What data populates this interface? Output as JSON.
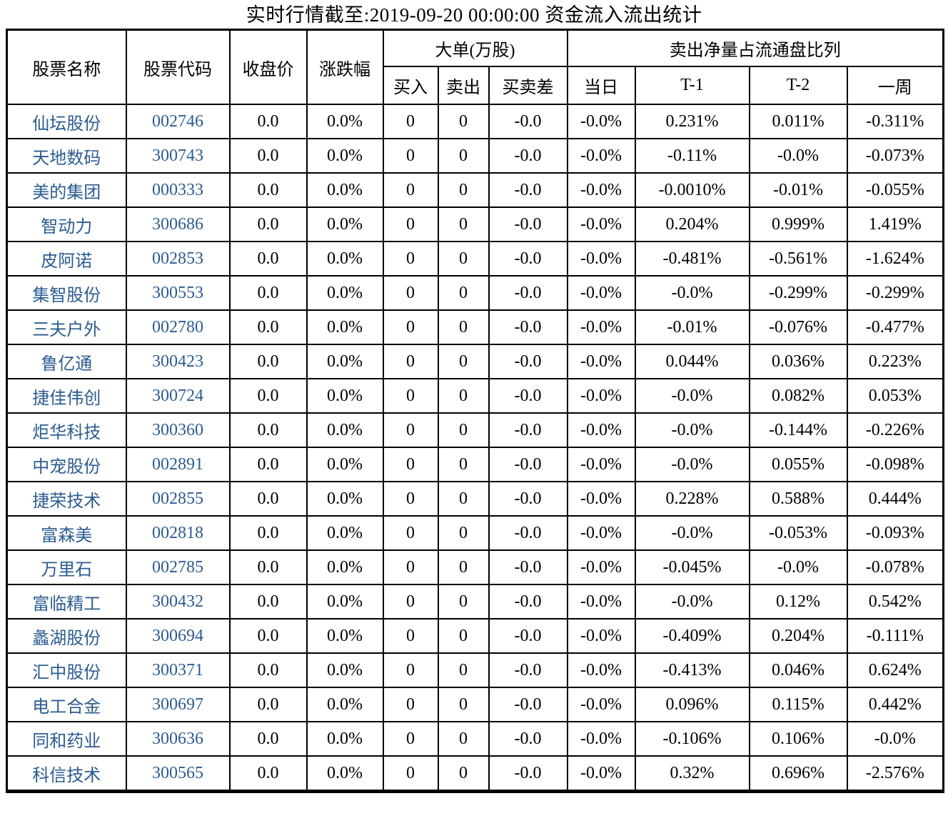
{
  "title": "实时行情截至:2019-09-20 00:00:00 资金流入流出统计",
  "colors": {
    "stock_link_blue": "#2b5c90",
    "border_black": "#000000",
    "background": "#ffffff"
  },
  "table": {
    "column_keys": [
      "name",
      "code",
      "close",
      "change",
      "buy",
      "sell",
      "diff",
      "today",
      "t1",
      "t2",
      "week"
    ],
    "headers": {
      "name": "股票名称",
      "code": "股票代码",
      "close": "收盘价",
      "change": "涨跌幅",
      "big_order_group": "大单(万股)",
      "buy": "买入",
      "sell": "卖出",
      "diff": "买卖差",
      "net_sell_ratio_group": "卖出净量占流通盘比列",
      "today": "当日",
      "t1": "T-1",
      "t2": "T-2",
      "week": "一周"
    },
    "rows": [
      {
        "name": "仙坛股份",
        "code": "002746",
        "close": "0.0",
        "change": "0.0%",
        "buy": "0",
        "sell": "0",
        "diff": "-0.0",
        "today": "-0.0%",
        "t1": "0.231%",
        "t2": "0.011%",
        "week": "-0.311%"
      },
      {
        "name": "天地数码",
        "code": "300743",
        "close": "0.0",
        "change": "0.0%",
        "buy": "0",
        "sell": "0",
        "diff": "-0.0",
        "today": "-0.0%",
        "t1": "-0.11%",
        "t2": "-0.0%",
        "week": "-0.073%"
      },
      {
        "name": "美的集团",
        "code": "000333",
        "close": "0.0",
        "change": "0.0%",
        "buy": "0",
        "sell": "0",
        "diff": "-0.0",
        "today": "-0.0%",
        "t1": "-0.0010%",
        "t2": "-0.01%",
        "week": "-0.055%"
      },
      {
        "name": "智动力",
        "code": "300686",
        "close": "0.0",
        "change": "0.0%",
        "buy": "0",
        "sell": "0",
        "diff": "-0.0",
        "today": "-0.0%",
        "t1": "0.204%",
        "t2": "0.999%",
        "week": "1.419%"
      },
      {
        "name": "皮阿诺",
        "code": "002853",
        "close": "0.0",
        "change": "0.0%",
        "buy": "0",
        "sell": "0",
        "diff": "-0.0",
        "today": "-0.0%",
        "t1": "-0.481%",
        "t2": "-0.561%",
        "week": "-1.624%"
      },
      {
        "name": "集智股份",
        "code": "300553",
        "close": "0.0",
        "change": "0.0%",
        "buy": "0",
        "sell": "0",
        "diff": "-0.0",
        "today": "-0.0%",
        "t1": "-0.0%",
        "t2": "-0.299%",
        "week": "-0.299%"
      },
      {
        "name": "三夫户外",
        "code": "002780",
        "close": "0.0",
        "change": "0.0%",
        "buy": "0",
        "sell": "0",
        "diff": "-0.0",
        "today": "-0.0%",
        "t1": "-0.01%",
        "t2": "-0.076%",
        "week": "-0.477%"
      },
      {
        "name": "鲁亿通",
        "code": "300423",
        "close": "0.0",
        "change": "0.0%",
        "buy": "0",
        "sell": "0",
        "diff": "-0.0",
        "today": "-0.0%",
        "t1": "0.044%",
        "t2": "0.036%",
        "week": "0.223%"
      },
      {
        "name": "捷佳伟创",
        "code": "300724",
        "close": "0.0",
        "change": "0.0%",
        "buy": "0",
        "sell": "0",
        "diff": "-0.0",
        "today": "-0.0%",
        "t1": "-0.0%",
        "t2": "0.082%",
        "week": "0.053%"
      },
      {
        "name": "炬华科技",
        "code": "300360",
        "close": "0.0",
        "change": "0.0%",
        "buy": "0",
        "sell": "0",
        "diff": "-0.0",
        "today": "-0.0%",
        "t1": "-0.0%",
        "t2": "-0.144%",
        "week": "-0.226%"
      },
      {
        "name": "中宠股份",
        "code": "002891",
        "close": "0.0",
        "change": "0.0%",
        "buy": "0",
        "sell": "0",
        "diff": "-0.0",
        "today": "-0.0%",
        "t1": "-0.0%",
        "t2": "0.055%",
        "week": "-0.098%"
      },
      {
        "name": "捷荣技术",
        "code": "002855",
        "close": "0.0",
        "change": "0.0%",
        "buy": "0",
        "sell": "0",
        "diff": "-0.0",
        "today": "-0.0%",
        "t1": "0.228%",
        "t2": "0.588%",
        "week": "0.444%"
      },
      {
        "name": "富森美",
        "code": "002818",
        "close": "0.0",
        "change": "0.0%",
        "buy": "0",
        "sell": "0",
        "diff": "-0.0",
        "today": "-0.0%",
        "t1": "-0.0%",
        "t2": "-0.053%",
        "week": "-0.093%"
      },
      {
        "name": "万里石",
        "code": "002785",
        "close": "0.0",
        "change": "0.0%",
        "buy": "0",
        "sell": "0",
        "diff": "-0.0",
        "today": "-0.0%",
        "t1": "-0.045%",
        "t2": "-0.0%",
        "week": "-0.078%"
      },
      {
        "name": "富临精工",
        "code": "300432",
        "close": "0.0",
        "change": "0.0%",
        "buy": "0",
        "sell": "0",
        "diff": "-0.0",
        "today": "-0.0%",
        "t1": "-0.0%",
        "t2": "0.12%",
        "week": "0.542%"
      },
      {
        "name": "蠡湖股份",
        "code": "300694",
        "close": "0.0",
        "change": "0.0%",
        "buy": "0",
        "sell": "0",
        "diff": "-0.0",
        "today": "-0.0%",
        "t1": "-0.409%",
        "t2": "0.204%",
        "week": "-0.111%"
      },
      {
        "name": "汇中股份",
        "code": "300371",
        "close": "0.0",
        "change": "0.0%",
        "buy": "0",
        "sell": "0",
        "diff": "-0.0",
        "today": "-0.0%",
        "t1": "-0.413%",
        "t2": "0.046%",
        "week": "0.624%"
      },
      {
        "name": "电工合金",
        "code": "300697",
        "close": "0.0",
        "change": "0.0%",
        "buy": "0",
        "sell": "0",
        "diff": "-0.0",
        "today": "-0.0%",
        "t1": "0.096%",
        "t2": "0.115%",
        "week": "0.442%"
      },
      {
        "name": "同和药业",
        "code": "300636",
        "close": "0.0",
        "change": "0.0%",
        "buy": "0",
        "sell": "0",
        "diff": "-0.0",
        "today": "-0.0%",
        "t1": "-0.106%",
        "t2": "0.106%",
        "week": "-0.0%"
      },
      {
        "name": "科信技术",
        "code": "300565",
        "close": "0.0",
        "change": "0.0%",
        "buy": "0",
        "sell": "0",
        "diff": "-0.0",
        "today": "-0.0%",
        "t1": "0.32%",
        "t2": "0.696%",
        "week": "-2.576%"
      }
    ]
  }
}
